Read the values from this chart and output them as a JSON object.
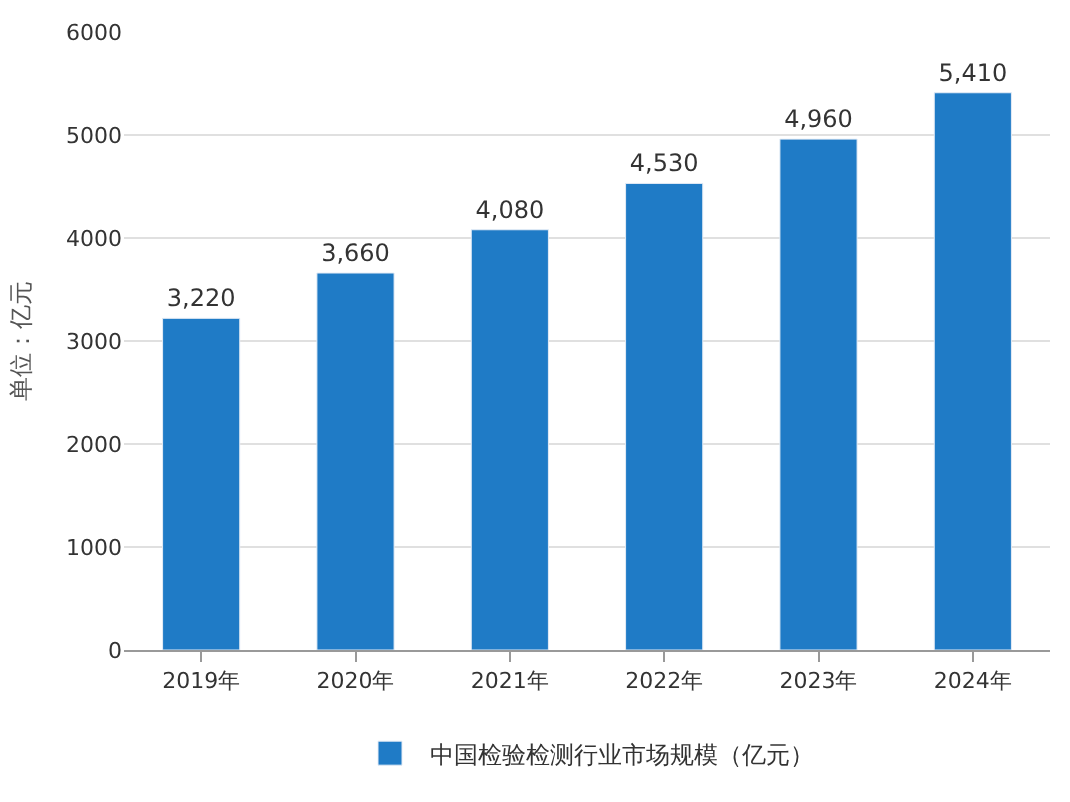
{
  "chart_data": {
    "type": "bar",
    "ylabel": "单位：亿元",
    "categories": [
      "2019年",
      "2020年",
      "2021年",
      "2022年",
      "2023年",
      "2024年"
    ],
    "series": [
      {
        "name": "中国检验检测行业市场规模（亿元）",
        "color": "#1f7bc6",
        "values": [
          3220,
          3660,
          4080,
          4530,
          4960,
          5410
        ],
        "value_labels": [
          "3,220",
          "3,660",
          "4,080",
          "4,530",
          "4,960",
          "5,410"
        ]
      }
    ],
    "ylim": [
      0,
      6000
    ],
    "yticks": [
      0,
      1000,
      2000,
      3000,
      4000,
      5000,
      6000
    ],
    "grid": "y",
    "legend": "bottom"
  }
}
